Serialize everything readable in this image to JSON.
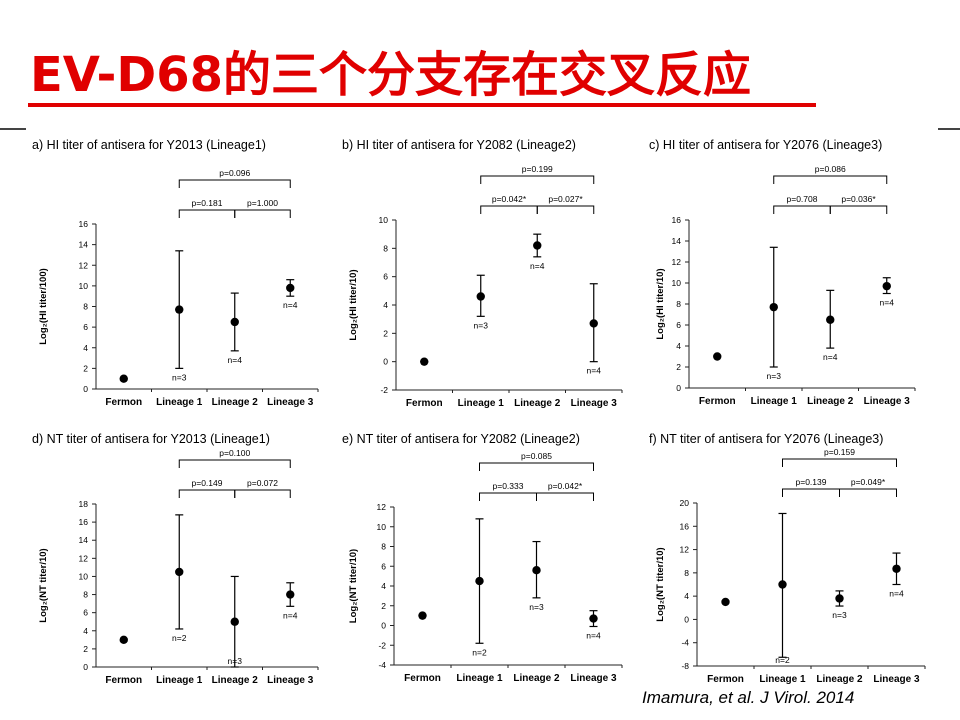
{
  "slide": {
    "title": "EV-D68的三个分支存在交叉反应",
    "citation": "Imamura, et al. J Virol. 2014",
    "accent_color": "#e00000"
  },
  "chart_data": [
    {
      "type": "scatter",
      "title": "a) HI titer of antisera for Y2013 (Lineage1)",
      "ylabel": "Log₂(HI titer/100)",
      "categories": [
        "Fermon",
        "Lineage 1",
        "Lineage 2",
        "Lineage 3"
      ],
      "ylim": [
        0,
        16
      ],
      "yticks": [
        0,
        2,
        4,
        6,
        8,
        10,
        12,
        14,
        16
      ],
      "means": [
        1.0,
        7.7,
        6.5,
        9.8
      ],
      "err_low": [
        null,
        2.0,
        3.7,
        9.0
      ],
      "err_high": [
        null,
        13.4,
        9.3,
        10.6
      ],
      "n_labels": [
        "",
        "n=3",
        "n=4",
        "n=4"
      ],
      "brackets": [
        {
          "from": 1,
          "to": 3,
          "label": "p=0.096",
          "level": 2
        },
        {
          "from": 1,
          "to": 2,
          "label": "p=0.181",
          "level": 1
        },
        {
          "from": 2,
          "to": 3,
          "label": "p=1.000",
          "level": 1
        }
      ],
      "grid": false
    },
    {
      "type": "scatter",
      "title": "b) HI titer of antisera for Y2082 (Lineage2)",
      "ylabel": "Log₂(HI titer/10)",
      "categories": [
        "Fermon",
        "Lineage 1",
        "Lineage 2",
        "Lineage 3"
      ],
      "ylim": [
        -2,
        10
      ],
      "yticks": [
        -2,
        0,
        2,
        4,
        6,
        8,
        10
      ],
      "means": [
        0.0,
        4.6,
        8.2,
        2.7
      ],
      "err_low": [
        null,
        3.2,
        7.4,
        0.0
      ],
      "err_high": [
        null,
        6.1,
        9.0,
        5.5
      ],
      "n_labels": [
        "",
        "n=3",
        "n=4",
        "n=4"
      ],
      "brackets": [
        {
          "from": 1,
          "to": 3,
          "label": "p=0.199",
          "level": 2
        },
        {
          "from": 1,
          "to": 2,
          "label": "p=0.042*",
          "level": 1
        },
        {
          "from": 2,
          "to": 3,
          "label": "p=0.027*",
          "level": 1
        }
      ],
      "grid": false
    },
    {
      "type": "scatter",
      "title": "c) HI titer of antisera for Y2076  (Lineage3)",
      "ylabel": "Log₂(HI titer/10)",
      "categories": [
        "Fermon",
        "Lineage 1",
        "Lineage 2",
        "Lineage 3"
      ],
      "ylim": [
        0,
        16
      ],
      "yticks": [
        0,
        2,
        4,
        6,
        8,
        10,
        12,
        14,
        16
      ],
      "means": [
        3.0,
        7.7,
        6.5,
        9.7
      ],
      "err_low": [
        null,
        2.0,
        3.8,
        9.0
      ],
      "err_high": [
        null,
        13.4,
        9.3,
        10.5
      ],
      "n_labels": [
        "",
        "n=3",
        "n=4",
        "n=4"
      ],
      "brackets": [
        {
          "from": 1,
          "to": 3,
          "label": "p=0.086",
          "level": 2
        },
        {
          "from": 1,
          "to": 2,
          "label": "p=0.708",
          "level": 1
        },
        {
          "from": 2,
          "to": 3,
          "label": "p=0.036*",
          "level": 1
        }
      ],
      "grid": false
    },
    {
      "type": "scatter",
      "title": "d) NT titer of antisera for Y2013 (Lineage1)",
      "ylabel": "Log₂(NT titer/10)",
      "categories": [
        "Fermon",
        "Lineage 1",
        "Lineage 2",
        "Lineage 3"
      ],
      "ylim": [
        0,
        18
      ],
      "yticks": [
        0,
        2,
        4,
        6,
        8,
        10,
        12,
        14,
        16,
        18
      ],
      "means": [
        3.0,
        10.5,
        5.0,
        8.0
      ],
      "err_low": [
        null,
        4.2,
        0.0,
        6.7
      ],
      "err_high": [
        null,
        16.8,
        10.0,
        9.3
      ],
      "n_labels": [
        "",
        "n=2",
        "n=3",
        "n=4"
      ],
      "brackets": [
        {
          "from": 1,
          "to": 3,
          "label": "p=0.100",
          "level": 2
        },
        {
          "from": 1,
          "to": 2,
          "label": "p=0.149",
          "level": 1
        },
        {
          "from": 2,
          "to": 3,
          "label": "p=0.072",
          "level": 1
        }
      ],
      "grid": false
    },
    {
      "type": "scatter",
      "title": "e) NT titer of antisera for Y2082 (Lineage2)",
      "ylabel": "Log₂(NT titer/10)",
      "categories": [
        "Fermon",
        "Lineage 1",
        "Lineage 2",
        "Lineage 3"
      ],
      "ylim": [
        -4,
        12
      ],
      "yticks": [
        -4,
        -2,
        0,
        2,
        4,
        6,
        8,
        10,
        12
      ],
      "means": [
        1.0,
        4.5,
        5.6,
        0.7
      ],
      "err_low": [
        null,
        -1.8,
        2.8,
        -0.1
      ],
      "err_high": [
        null,
        10.8,
        8.5,
        1.5
      ],
      "n_labels": [
        "",
        "n=2",
        "n=3",
        "n=4"
      ],
      "brackets": [
        {
          "from": 1,
          "to": 3,
          "label": "p=0.085",
          "level": 2
        },
        {
          "from": 1,
          "to": 2,
          "label": "p=0.333",
          "level": 1
        },
        {
          "from": 2,
          "to": 3,
          "label": "p=0.042*",
          "level": 1
        }
      ],
      "grid": false
    },
    {
      "type": "scatter",
      "title": "f) NT titer of antisera for Y2076  (Lineage3)",
      "ylabel": "Log₂(NT titer/10)",
      "categories": [
        "Fermon",
        "Lineage 1",
        "Lineage 2",
        "Lineage 3"
      ],
      "ylim": [
        -8,
        20
      ],
      "yticks": [
        -8,
        -4,
        0,
        4,
        8,
        12,
        16,
        20
      ],
      "means": [
        3.0,
        6.0,
        3.6,
        8.7
      ],
      "err_low": [
        null,
        -6.5,
        2.3,
        6.0
      ],
      "err_high": [
        null,
        18.2,
        4.9,
        11.4
      ],
      "n_labels": [
        "",
        "n=2",
        "n=3",
        "n=4"
      ],
      "brackets": [
        {
          "from": 1,
          "to": 3,
          "label": "p=0.159",
          "level": 2
        },
        {
          "from": 1,
          "to": 2,
          "label": "p=0.139",
          "level": 1
        },
        {
          "from": 2,
          "to": 3,
          "label": "p=0.049*",
          "level": 1
        }
      ],
      "grid": false
    }
  ]
}
